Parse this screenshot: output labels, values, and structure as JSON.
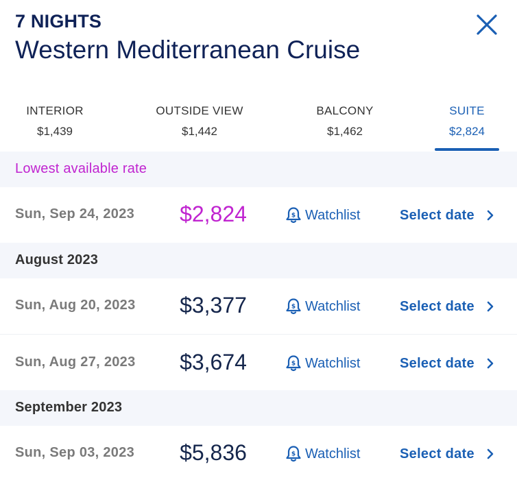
{
  "header": {
    "nights": "7 NIGHTS",
    "title": "Western Mediterranean Cruise"
  },
  "tabs": [
    {
      "label": "INTERIOR",
      "price": "$1,439",
      "active": false
    },
    {
      "label": "OUTSIDE VIEW",
      "price": "$1,442",
      "active": false
    },
    {
      "label": "BALCONY",
      "price": "$1,462",
      "active": false
    },
    {
      "label": "SUITE",
      "price": "$2,824",
      "active": true
    }
  ],
  "lowest": {
    "label": "Lowest available rate",
    "date": "Sun, Sep 24, 2023",
    "price": "$2,824"
  },
  "months": [
    {
      "label": "August 2023",
      "rows": [
        {
          "date": "Sun, Aug 20, 2023",
          "price": "$3,377"
        },
        {
          "date": "Sun, Aug 27, 2023",
          "price": "$3,674"
        }
      ]
    },
    {
      "label": "September 2023",
      "rows": [
        {
          "date": "Sun, Sep 03, 2023",
          "price": "$5,836"
        }
      ]
    }
  ],
  "actions": {
    "watchlist_label": "Watchlist",
    "select_label": "Select date"
  },
  "icons": {
    "close": "close-icon",
    "watchlist": "bell-dollar-icon",
    "chevron": "chevron-right-icon"
  },
  "colors": {
    "primary": "#1a5fb4",
    "navy": "#0f2257",
    "highlight": "#c024d0",
    "section_bg": "#f4f6fb"
  }
}
